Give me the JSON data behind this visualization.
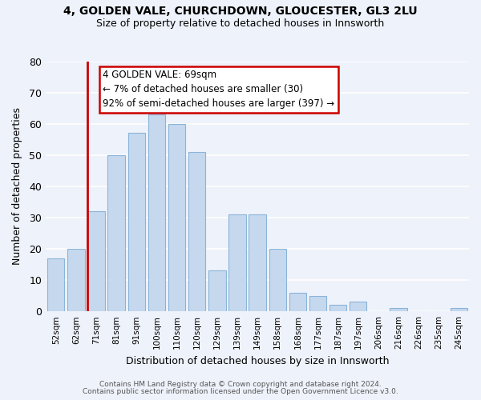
{
  "title1": "4, GOLDEN VALE, CHURCHDOWN, GLOUCESTER, GL3 2LU",
  "title2": "Size of property relative to detached houses in Innsworth",
  "xlabel": "Distribution of detached houses by size in Innsworth",
  "ylabel": "Number of detached properties",
  "bar_labels": [
    "52sqm",
    "62sqm",
    "71sqm",
    "81sqm",
    "91sqm",
    "100sqm",
    "110sqm",
    "120sqm",
    "129sqm",
    "139sqm",
    "149sqm",
    "158sqm",
    "168sqm",
    "177sqm",
    "187sqm",
    "197sqm",
    "206sqm",
    "216sqm",
    "226sqm",
    "235sqm",
    "245sqm"
  ],
  "bar_values": [
    17,
    20,
    32,
    50,
    57,
    63,
    60,
    51,
    13,
    31,
    31,
    20,
    6,
    5,
    2,
    3,
    0,
    1,
    0,
    0,
    1
  ],
  "highlight_index": 2,
  "bar_color": "#c5d8ee",
  "bar_edge_color": "#8ab4d8",
  "highlight_line_color": "#cc0000",
  "ylim": [
    0,
    80
  ],
  "yticks": [
    0,
    10,
    20,
    30,
    40,
    50,
    60,
    70,
    80
  ],
  "annotation_title": "4 GOLDEN VALE: 69sqm",
  "annotation_line1": "← 7% of detached houses are smaller (30)",
  "annotation_line2": "92% of semi-detached houses are larger (397) →",
  "footer1": "Contains HM Land Registry data © Crown copyright and database right 2024.",
  "footer2": "Contains public sector information licensed under the Open Government Licence v3.0.",
  "bg_color": "#eef2fa",
  "grid_color": "#ffffff",
  "annotation_box_color": "#ffffff",
  "annotation_box_edge": "#cc0000"
}
